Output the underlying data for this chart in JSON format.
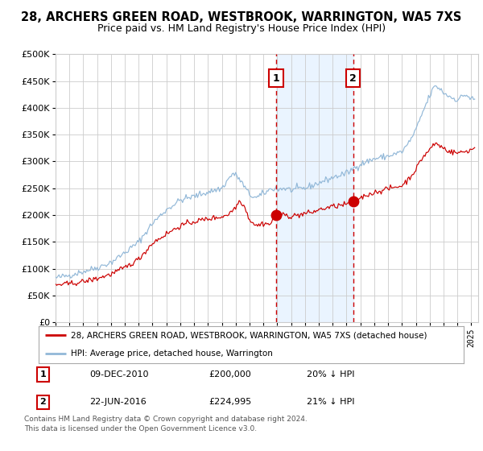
{
  "title": "28, ARCHERS GREEN ROAD, WESTBROOK, WARRINGTON, WA5 7XS",
  "subtitle": "Price paid vs. HM Land Registry's House Price Index (HPI)",
  "legend_label_red": "28, ARCHERS GREEN ROAD, WESTBROOK, WARRINGTON, WA5 7XS (detached house)",
  "legend_label_blue": "HPI: Average price, detached house, Warrington",
  "footer_line1": "Contains HM Land Registry data © Crown copyright and database right 2024.",
  "footer_line2": "This data is licensed under the Open Government Licence v3.0.",
  "annotation1_date": "09-DEC-2010",
  "annotation1_price": "£200,000",
  "annotation1_hpi": "20% ↓ HPI",
  "annotation1_year": 2010.93,
  "annotation1_value": 200000,
  "annotation2_date": "22-JUN-2016",
  "annotation2_price": "£224,995",
  "annotation2_hpi": "21% ↓ HPI",
  "annotation2_year": 2016.47,
  "annotation2_value": 224995,
  "ylim_min": 0,
  "ylim_max": 500000,
  "xlim_start": 1995.0,
  "xlim_end": 2025.5,
  "background_color": "#ffffff",
  "grid_color": "#cccccc",
  "red_color": "#cc0000",
  "blue_color": "#92b8d8",
  "shade_color": "#ddeeff",
  "title_fontsize": 10.5,
  "subtitle_fontsize": 9
}
